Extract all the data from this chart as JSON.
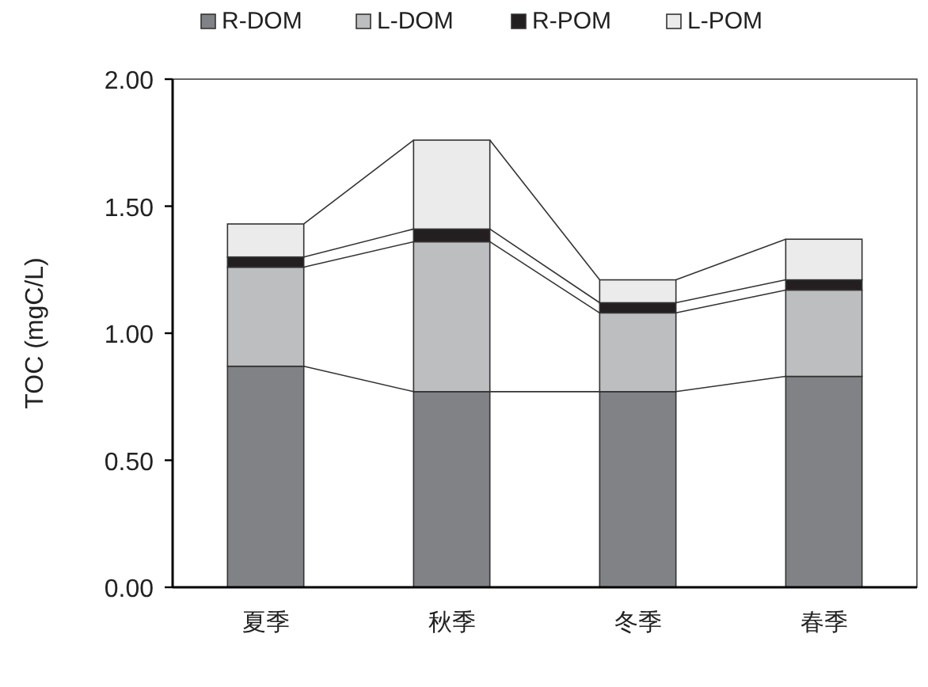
{
  "chart_data": {
    "type": "bar",
    "stacked": true,
    "ylabel": "TOC (mgC/L)",
    "categories": [
      "夏季",
      "秋季",
      "冬季",
      "春季"
    ],
    "series": [
      {
        "name": "R-DOM",
        "color": "#808285",
        "values": [
          0.87,
          0.77,
          0.77,
          0.83
        ]
      },
      {
        "name": "L-DOM",
        "color": "#bcbec0",
        "values": [
          0.39,
          0.59,
          0.31,
          0.34
        ]
      },
      {
        "name": "R-POM",
        "color": "#231f20",
        "values": [
          0.04,
          0.05,
          0.04,
          0.04
        ]
      },
      {
        "name": "L-POM",
        "color": "#ebebeb",
        "values": [
          0.13,
          0.35,
          0.09,
          0.16
        ]
      }
    ],
    "ylim": [
      0,
      2
    ],
    "yticks": [
      {
        "value": 0,
        "label": "0.00"
      },
      {
        "value": 0.5,
        "label": "0.50"
      },
      {
        "value": 1,
        "label": "1.00"
      },
      {
        "value": 1.5,
        "label": "1.50"
      },
      {
        "value": 2,
        "label": "2.00"
      }
    ],
    "legend": "top",
    "grid": false
  }
}
